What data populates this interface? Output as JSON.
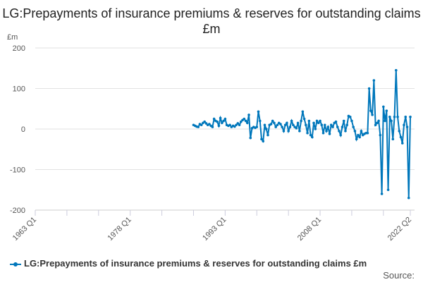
{
  "chart_data": {
    "type": "line",
    "title": "LG:Prepayments of insurance premiums & reserves for outstanding claims £m",
    "ylabel": "£m",
    "ylim": [
      -200,
      200
    ],
    "yticks": [
      200,
      100,
      0,
      -100,
      -200
    ],
    "xlim": [
      "1963 Q1",
      "2022 Q2"
    ],
    "xticks": [
      "1963 Q1",
      "1978 Q1",
      "1993 Q1",
      "2008 Q1",
      "2022 Q2"
    ],
    "x_start": "1988 Q1",
    "frequency": "quarterly",
    "grid": true,
    "legend": "bottom",
    "series": [
      {
        "name": "LG:Prepayments of insurance premiums & reserves for outstanding claims £m",
        "color": "#0077bb",
        "values": [
          10,
          8,
          6,
          5,
          12,
          10,
          15,
          18,
          14,
          10,
          12,
          8,
          5,
          25,
          20,
          18,
          8,
          27,
          15,
          20,
          25,
          10,
          8,
          10,
          5,
          8,
          6,
          10,
          14,
          10,
          18,
          22,
          25,
          20,
          15,
          35,
          -22,
          2,
          5,
          3,
          5,
          43,
          20,
          -25,
          -30,
          10,
          0,
          -15,
          10,
          12,
          20,
          15,
          5,
          10,
          15,
          12,
          5,
          -5,
          10,
          15,
          -5,
          5,
          20,
          10,
          5,
          2,
          15,
          -5,
          20,
          43,
          25,
          10,
          -10,
          20,
          -15,
          -20,
          15,
          0,
          20,
          15,
          20,
          10,
          -10,
          10,
          -5,
          5,
          -12,
          10,
          5,
          15,
          18,
          5,
          -5,
          -15,
          5,
          20,
          -5,
          10,
          32,
          30,
          20,
          5,
          -5,
          -25,
          -15,
          -20,
          -5,
          -15,
          -12,
          -10,
          -10,
          100,
          45,
          35,
          120,
          10,
          15,
          20,
          -15,
          -160,
          55,
          20,
          45,
          -150,
          30,
          20,
          -25,
          30,
          145,
          30,
          -5,
          -20,
          -35,
          10,
          30,
          5,
          -170,
          30
        ]
      }
    ]
  },
  "source_label": "Source:"
}
